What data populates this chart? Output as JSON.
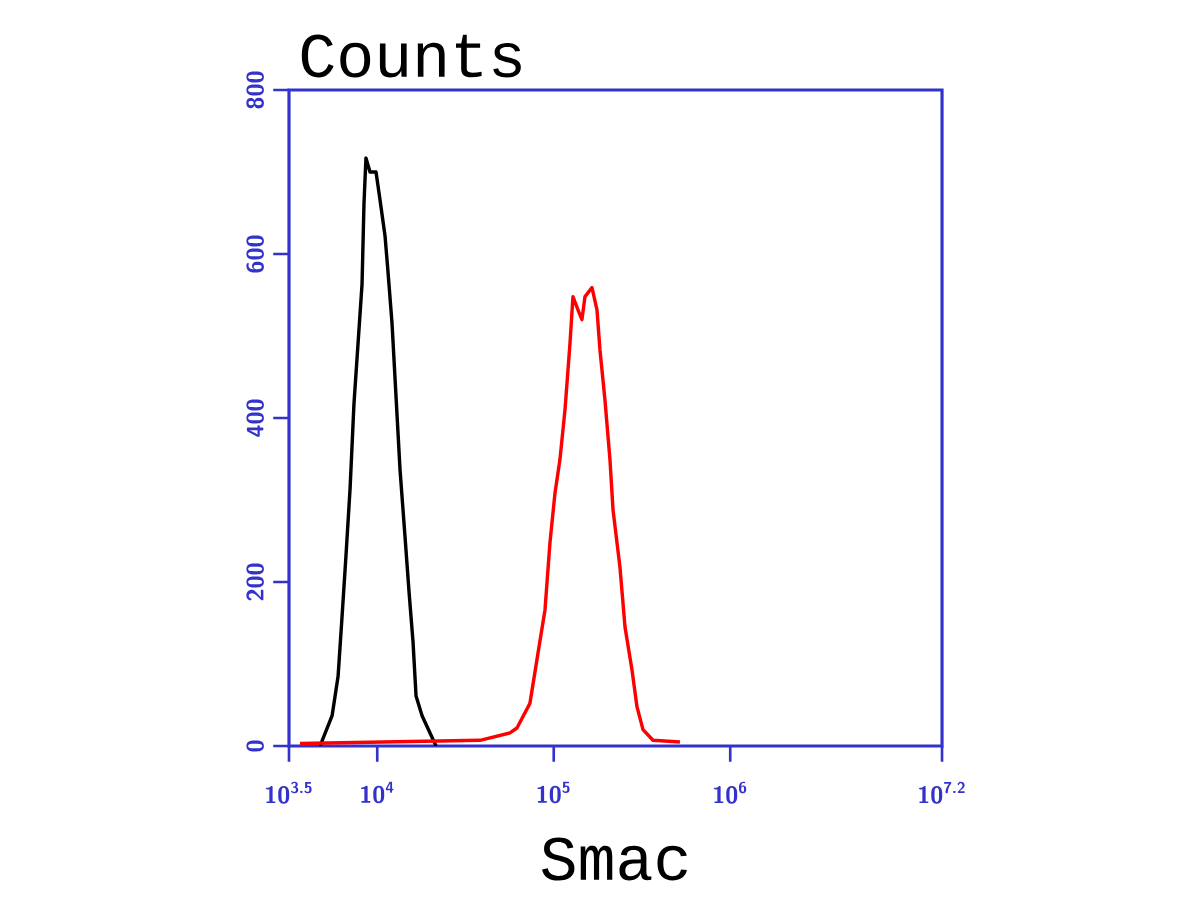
{
  "chart_data": {
    "type": "line",
    "ylabel": "Counts",
    "xlabel": "Smac",
    "log": "x",
    "xlim": [
      3162.3,
      15848932
    ],
    "ylim": [
      0,
      800
    ],
    "xticks": [
      {
        "value": 3162.3,
        "label": "10$^{3.5}$"
      },
      {
        "value": 10000,
        "label": "10$^{4}$"
      },
      {
        "value": 100000,
        "label": "10$^{5}$"
      },
      {
        "value": 1000000,
        "label": "10$^{6}$"
      },
      {
        "value": 15848932,
        "label": "10$^{7.2}$"
      }
    ],
    "yticks": [
      0,
      200,
      400,
      600,
      800
    ],
    "series": [
      {
        "color": "#000000",
        "x": [
          4740,
          5550,
          6000,
          6310,
          6650,
          7020,
          7380,
          7780,
          8200,
          8410,
          8630,
          9100,
          9840,
          10370,
          11070,
          11510,
          12130,
          12770,
          13460,
          14360,
          15140,
          15950,
          16590,
          17950,
          21530
        ],
        "values": [
          0,
          37,
          85,
          156,
          232,
          315,
          417,
          490,
          563,
          661,
          717,
          700,
          700,
          666,
          622,
          578,
          515,
          427,
          337,
          256,
          188,
          127,
          61,
          37,
          0
        ]
      },
      {
        "color": "#ff0000",
        "x": [
          3650,
          38200,
          56500,
          61900,
          73300,
          81400,
          89200,
          95200,
          101700,
          108400,
          115800,
          123600,
          128500,
          137200,
          144500,
          150300,
          164700,
          175800,
          182800,
          195100,
          208300,
          216700,
          237300,
          253400,
          277500,
          296200,
          320400,
          365000,
          518800
        ],
        "values": [
          3,
          7,
          16,
          22,
          52,
          113,
          166,
          248,
          309,
          349,
          410,
          491,
          548,
          532,
          520,
          548,
          559,
          532,
          483,
          422,
          349,
          288,
          218,
          145,
          93,
          48,
          20,
          7,
          5
        ]
      }
    ]
  }
}
